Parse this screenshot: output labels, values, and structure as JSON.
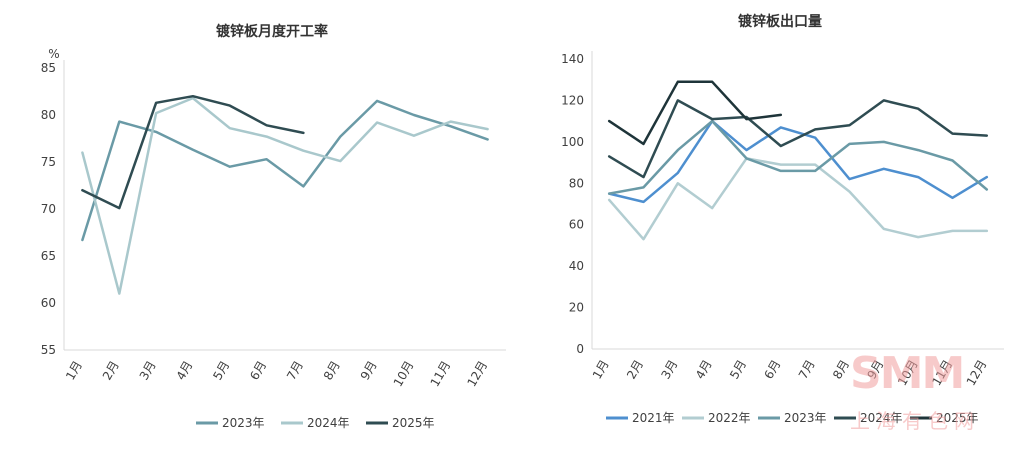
{
  "chart_data": [
    {
      "type": "line",
      "title": "镀锌板月度开工率",
      "unit_label": "%",
      "categories": [
        "1月",
        "2月",
        "3月",
        "4月",
        "5月",
        "6月",
        "7月",
        "8月",
        "9月",
        "10月",
        "11月",
        "12月"
      ],
      "ylim": [
        55,
        85
      ],
      "yticks": [
        55,
        60,
        65,
        70,
        75,
        80,
        85
      ],
      "grid": false,
      "legend_position": "bottom",
      "series": [
        {
          "name": "2023年",
          "color": "#6a9aa6",
          "values": [
            66.7,
            79.3,
            78.2,
            76.3,
            74.5,
            75.3,
            72.4,
            77.7,
            81.5,
            80.0,
            78.8,
            77.4
          ]
        },
        {
          "name": "2024年",
          "color": "#a9c8cc",
          "values": [
            76.0,
            61.0,
            80.2,
            81.8,
            78.6,
            77.7,
            76.2,
            75.1,
            79.2,
            77.8,
            79.3,
            78.5
          ]
        },
        {
          "name": "2025年",
          "color": "#2f4c52",
          "values": [
            72.0,
            70.1,
            81.3,
            82.0,
            81.0,
            78.9,
            78.1,
            null,
            null,
            null,
            null,
            null
          ]
        }
      ]
    },
    {
      "type": "line",
      "title": "镀锌板出口量",
      "categories": [
        "1月",
        "2月",
        "3月",
        "4月",
        "5月",
        "6月",
        "7月",
        "8月",
        "9月",
        "10月",
        "11月",
        "12月"
      ],
      "ylim": [
        0,
        140
      ],
      "yticks": [
        0,
        20,
        40,
        60,
        80,
        100,
        120,
        140
      ],
      "grid": false,
      "legend_position": "bottom",
      "series": [
        {
          "name": "2021年",
          "color": "#4e8fcf",
          "values": [
            75,
            71,
            85,
            110,
            96,
            107,
            102,
            82,
            87,
            83,
            73,
            83
          ]
        },
        {
          "name": "2022年",
          "color": "#b2cdd1",
          "values": [
            72,
            53,
            80,
            68,
            92,
            89,
            89,
            76,
            58,
            54,
            57,
            57
          ]
        },
        {
          "name": "2023年",
          "color": "#6a9aa6",
          "values": [
            75,
            78,
            96,
            110,
            92,
            86,
            86,
            99,
            100,
            96,
            91,
            77
          ]
        },
        {
          "name": "2024年",
          "color": "#2f4c52",
          "values": [
            93,
            83,
            120,
            111,
            112,
            98,
            106,
            108,
            120,
            116,
            104,
            103
          ]
        },
        {
          "name": "2025年",
          "color": "#1e3439",
          "values": [
            110,
            99,
            129,
            129,
            111,
            113,
            null,
            null,
            null,
            null,
            null,
            null
          ]
        }
      ]
    }
  ],
  "watermark": {
    "big": "SMM",
    "small": "上海有色网"
  }
}
